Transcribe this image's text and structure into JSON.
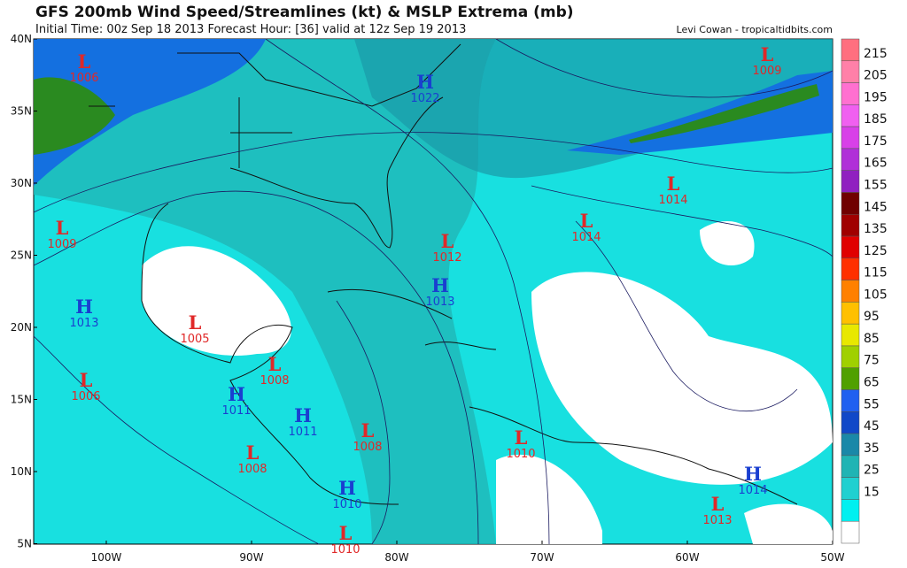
{
  "header": {
    "title": "GFS 200mb Wind Speed/Streamlines (kt) & MSLP Extrema (mb)",
    "subtitle": "Initial Time: 00z Sep 18 2013 Forecast Hour: [36] valid at 12z Sep 19 2013",
    "credit": "Levi Cowan - tropicaltidbits.com"
  },
  "map": {
    "lat_labels": [
      "40N",
      "35N",
      "30N",
      "25N",
      "20N",
      "15N",
      "10N",
      "5N"
    ],
    "lon_labels": [
      "100W",
      "90W",
      "80W",
      "70W",
      "60W",
      "50W"
    ],
    "extrema": [
      {
        "type": "L",
        "value": "1006"
      },
      {
        "type": "H",
        "value": "1022"
      },
      {
        "type": "L",
        "value": "1009"
      },
      {
        "type": "L",
        "value": "1014"
      },
      {
        "type": "L",
        "value": "1014"
      },
      {
        "type": "L",
        "value": "1009"
      },
      {
        "type": "L",
        "value": "1012"
      },
      {
        "type": "H",
        "value": "1013"
      },
      {
        "type": "H",
        "value": "1013"
      },
      {
        "type": "L",
        "value": "1005"
      },
      {
        "type": "L",
        "value": "1008"
      },
      {
        "type": "L",
        "value": "1006"
      },
      {
        "type": "H",
        "value": "1011"
      },
      {
        "type": "H",
        "value": "1011"
      },
      {
        "type": "L",
        "value": "1008"
      },
      {
        "type": "L",
        "value": "1010"
      },
      {
        "type": "L",
        "value": "1008"
      },
      {
        "type": "H",
        "value": "1014"
      },
      {
        "type": "H",
        "value": "1010"
      },
      {
        "type": "L",
        "value": "1013"
      },
      {
        "type": "L",
        "value": "1010"
      }
    ]
  },
  "colorbar": {
    "labels": [
      "215",
      "205",
      "195",
      "185",
      "175",
      "165",
      "155",
      "145",
      "135",
      "125",
      "115",
      "105",
      "95",
      "85",
      "75",
      "65",
      "55",
      "45",
      "35",
      "25",
      "15"
    ],
    "colors": [
      "#ff6f7f",
      "#ff80a8",
      "#ff70d0",
      "#f060f0",
      "#d840e8",
      "#b030d8",
      "#9020c0",
      "#700000",
      "#a00000",
      "#e00000",
      "#ff3000",
      "#ff8000",
      "#ffc000",
      "#e8e800",
      "#a0d000",
      "#50a000",
      "#2060f0",
      "#1048c8",
      "#1a88a8",
      "#20b4b4",
      "#20d0d0",
      "#00f0f0",
      "#ffffff"
    ]
  }
}
